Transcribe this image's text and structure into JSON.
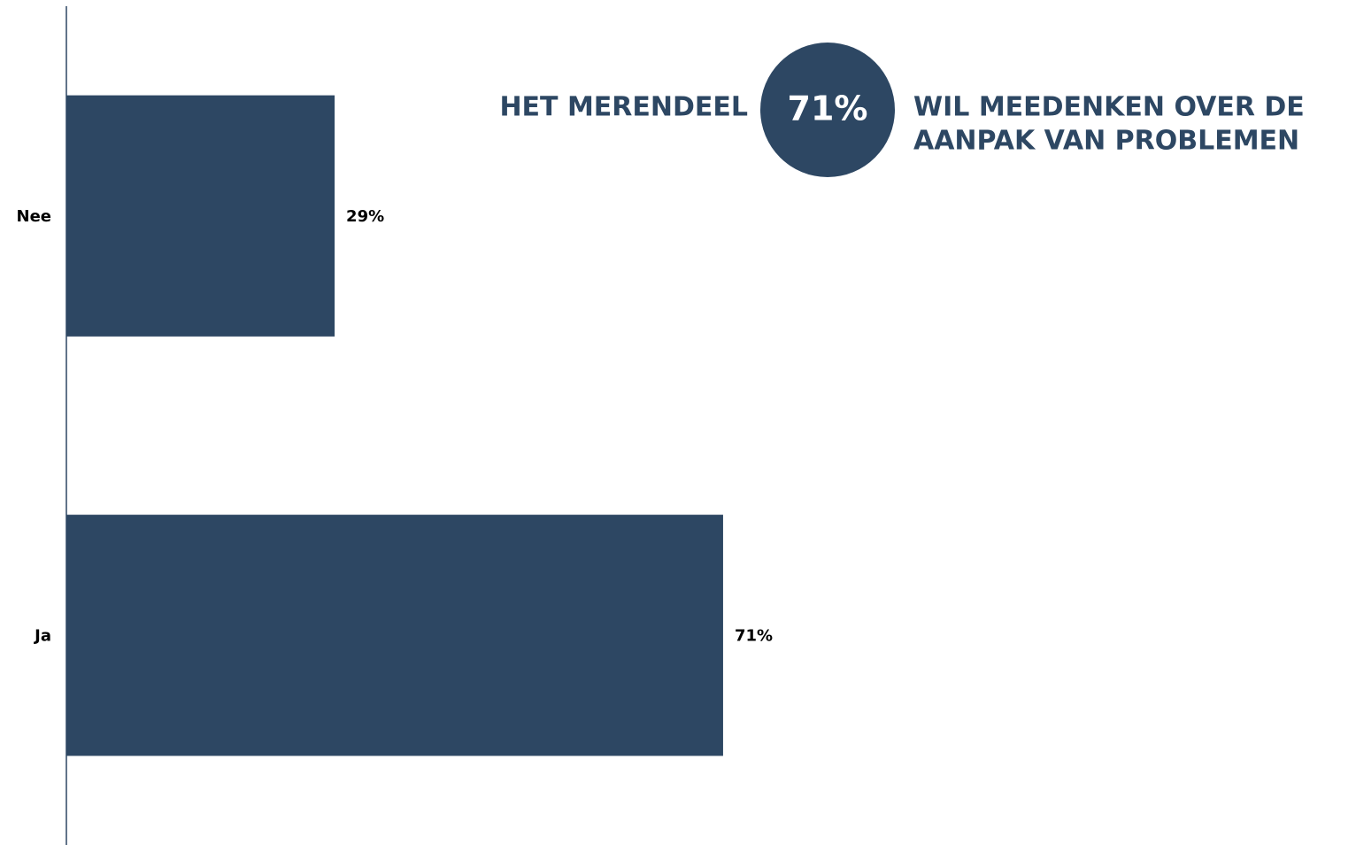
{
  "chart_data": {
    "type": "bar",
    "orientation": "horizontal",
    "categories": [
      "Nee",
      "Ja"
    ],
    "values": [
      29,
      71
    ],
    "value_labels": [
      "29%",
      "71%"
    ],
    "color": "#2d4763",
    "xlim": [
      0,
      100
    ],
    "annotation": {
      "left": "HET MERENDEEL",
      "highlight": "71%",
      "right": [
        "WIL MEEDENKEN OVER DE",
        "AANPAK VAN PROBLEMEN"
      ]
    }
  }
}
